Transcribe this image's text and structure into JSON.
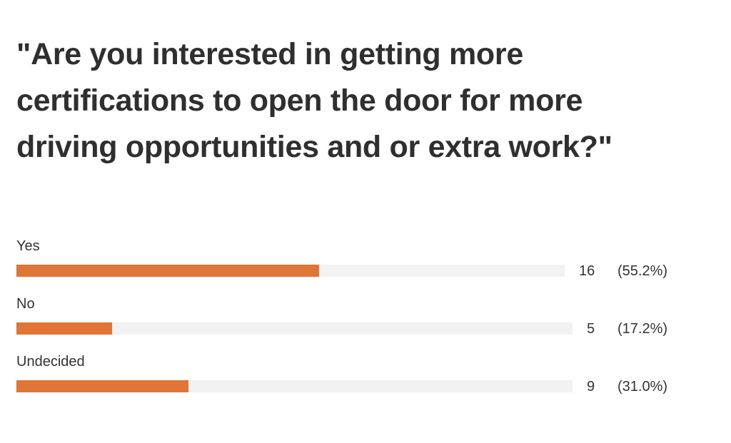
{
  "chart_data": {
    "type": "bar",
    "orientation": "horizontal",
    "title": "\"Are you interested in getting more certifications to open the door for more driving opportunities and or extra work?\"",
    "categories": [
      "Yes",
      "No",
      "Undecided"
    ],
    "counts": [
      16,
      5,
      9
    ],
    "values": [
      55.2,
      17.2,
      31.0
    ],
    "value_labels": [
      "(55.2%)",
      "(17.2%)",
      "(31.0%)"
    ],
    "xlim": [
      0,
      100
    ],
    "color": "#e07536"
  }
}
